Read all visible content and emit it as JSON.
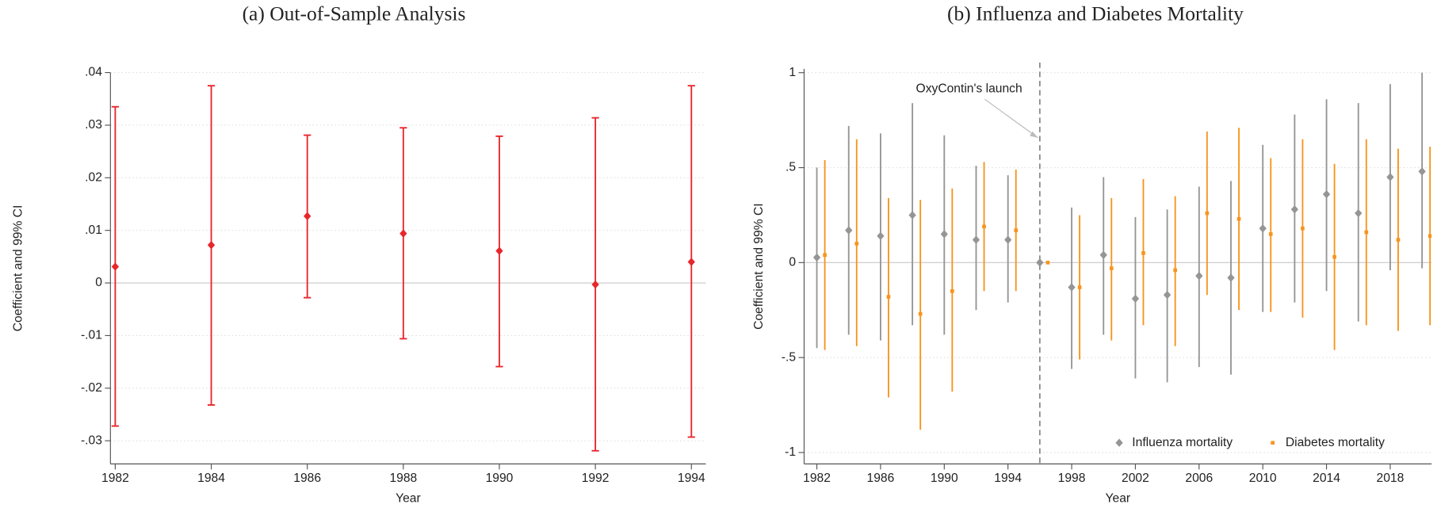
{
  "chart_data": [
    {
      "type": "errorbar",
      "title": "(a) Out-of-Sample Analysis",
      "x_label": "Year",
      "y_label": "Coefficient and 99% CI",
      "xlim": [
        1981.9,
        1994.3
      ],
      "xticks": [
        1982,
        1984,
        1986,
        1988,
        1990,
        1992,
        1994
      ],
      "ylim": [
        -0.0344,
        0.04
      ],
      "yticks": [
        {
          "value": -0.03,
          "label": "-.03"
        },
        {
          "value": -0.02,
          "label": "-.02"
        },
        {
          "value": -0.01,
          "label": "-.01"
        },
        0,
        {
          "value": 0.01,
          "label": ".01"
        },
        {
          "value": 0.02,
          "label": ".02"
        },
        {
          "value": 0.03,
          "label": ".03"
        },
        {
          "value": 0.04,
          "label": ".04"
        }
      ],
      "grid": true,
      "caps": true,
      "series": [
        {
          "color": "#e8262b",
          "marker": "diamond",
          "x": [
            1982,
            1984,
            1986,
            1988,
            1990,
            1992,
            1994
          ],
          "values": [
            0.0031,
            0.0072,
            0.0127,
            0.0094,
            0.0061,
            -0.0003,
            0.004
          ],
          "lower": [
            -0.0272,
            -0.0232,
            -0.0028,
            -0.0106,
            -0.0159,
            -0.0319,
            -0.0293
          ],
          "upper": [
            0.0335,
            0.0375,
            0.0281,
            0.0295,
            0.0279,
            0.0314,
            0.0375
          ]
        }
      ]
    },
    {
      "type": "errorbar",
      "title": "(b) Influenza and Diabetes Mortality",
      "x_label": "Year",
      "y_label": "Coefficient and 99% CI",
      "xlim": [
        1981.2,
        2020.6
      ],
      "xticks": [
        1982,
        1986,
        1990,
        1994,
        1998,
        2002,
        2006,
        2010,
        2014,
        2018
      ],
      "ylim": [
        -1.06,
        1.02
      ],
      "yticks": [
        -1,
        {
          "value": -0.5,
          "label": "-.5"
        },
        0,
        {
          "value": 0.5,
          "label": ".5"
        },
        1
      ],
      "grid": true,
      "caps": false,
      "legend": "bottom right",
      "vline": 1996,
      "annotation": "OxyContin's launch",
      "series": [
        {
          "name": "Influenza mortality",
          "color": "#959595",
          "marker": "diamond",
          "x": [
            1982,
            1984,
            1986,
            1988,
            1990,
            1992,
            1994,
            1996,
            1998,
            2000,
            2002,
            2004,
            2006,
            2008,
            2010,
            2012,
            2014,
            2016,
            2018,
            2020
          ],
          "values": [
            0.027,
            0.17,
            0.14,
            0.25,
            0.15,
            0.12,
            0.12,
            0,
            -0.13,
            0.04,
            -0.19,
            -0.17,
            -0.07,
            -0.08,
            0.18,
            0.28,
            0.36,
            0.26,
            0.45,
            0.48
          ],
          "lower": [
            -0.45,
            -0.38,
            -0.41,
            -0.33,
            -0.38,
            -0.25,
            -0.21,
            0,
            -0.56,
            -0.38,
            -0.61,
            -0.63,
            -0.55,
            -0.59,
            -0.26,
            -0.21,
            -0.15,
            -0.31,
            -0.04,
            -0.03
          ],
          "upper": [
            0.5,
            0.72,
            0.68,
            0.84,
            0.67,
            0.51,
            0.46,
            0,
            0.29,
            0.45,
            0.24,
            0.28,
            0.4,
            0.43,
            0.62,
            0.78,
            0.86,
            0.84,
            0.94,
            1.0
          ]
        },
        {
          "name": "Diabetes mortality",
          "color": "#f7941d",
          "marker": "square",
          "x": [
            1982.5,
            1984.5,
            1986.5,
            1988.5,
            1990.5,
            1992.5,
            1994.5,
            1996.5,
            1998.5,
            2000.5,
            2002.5,
            2004.5,
            2006.5,
            2008.5,
            2010.5,
            2012.5,
            2014.5,
            2016.5,
            2018.5,
            2020.5
          ],
          "values": [
            0.04,
            0.1,
            -0.18,
            -0.27,
            -0.15,
            0.19,
            0.17,
            0,
            -0.13,
            -0.03,
            0.05,
            -0.04,
            0.26,
            0.23,
            0.15,
            0.18,
            0.03,
            0.16,
            0.12,
            0.14
          ],
          "lower": [
            -0.46,
            -0.44,
            -0.71,
            -0.88,
            -0.68,
            -0.15,
            -0.15,
            0,
            -0.51,
            -0.41,
            -0.33,
            -0.44,
            -0.17,
            -0.25,
            -0.26,
            -0.29,
            -0.46,
            -0.33,
            -0.36,
            -0.33
          ],
          "upper": [
            0.54,
            0.65,
            0.34,
            0.33,
            0.39,
            0.53,
            0.49,
            0,
            0.25,
            0.34,
            0.44,
            0.35,
            0.69,
            0.71,
            0.55,
            0.65,
            0.52,
            0.65,
            0.6,
            0.61
          ]
        }
      ]
    }
  ]
}
